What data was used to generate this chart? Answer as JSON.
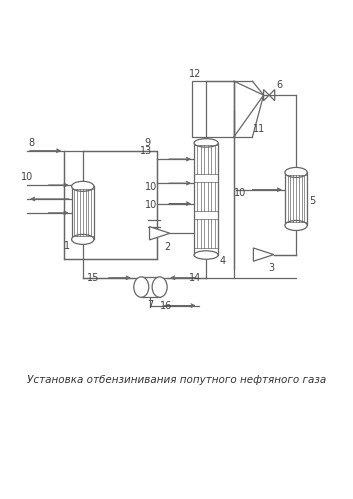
{
  "title": "Установка отбензинивания попутного нефтяного газа",
  "title_fontsize": 7.5,
  "bg_color": "#ffffff",
  "line_color": "#666666",
  "lw": 0.9,
  "fig_width": 3.53,
  "fig_height": 4.99,
  "dpi": 100
}
